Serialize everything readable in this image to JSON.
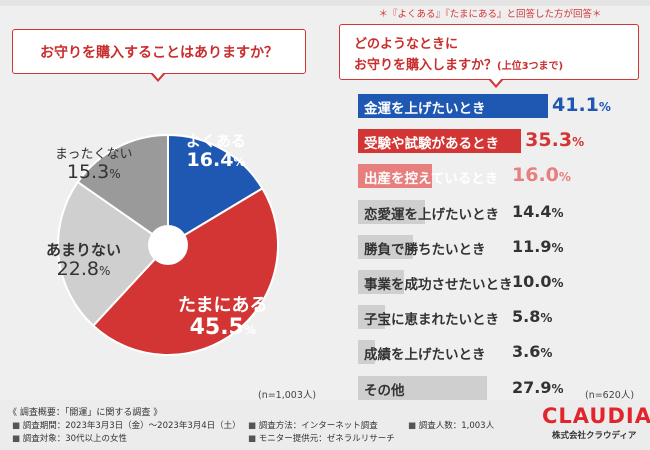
{
  "colors": {
    "blue": "#1f58b3",
    "red": "#d33535",
    "pink": "#e87f7f",
    "gray": "#cfcfcf",
    "gray_light": "#dcdcdc",
    "gray_dark": "#9a9a9a",
    "gray_mid": "#bdbdbd"
  },
  "left_question": "お守りを購入することはありますか？",
  "right_note": "＊『よくある』『たまにある』と回答した方が回答＊",
  "right_question": {
    "line1": "どのようなときに",
    "line2": "お守りを購入しますか？",
    "sub": "(上位3つまで)"
  },
  "left_n": "(n=1,003人)",
  "right_n": "(n=620人)",
  "chart_data": [
    {
      "type": "pie",
      "title": "お守りを購入することはありますか？",
      "slices": [
        {
          "label": "よくある",
          "value": 16.4,
          "color": "#1f58b3"
        },
        {
          "label": "たまにある",
          "value": 45.5,
          "color": "#d33535"
        },
        {
          "label": "あまりない",
          "value": 22.8,
          "color": "#cfcfcf"
        },
        {
          "label": "まったくない",
          "value": 15.3,
          "color": "#9a9a9a"
        }
      ]
    },
    {
      "type": "bar",
      "orientation": "horizontal",
      "title": "どのようなときにお守りを購入しますか？(上位3つまで)",
      "categories": [
        "金運を上げたいとき",
        "受験や試験があるとき",
        "出産を控えているとき",
        "恋愛運を上げたいとき",
        "勝負で勝ちたいとき",
        "事業を成功させたいとき",
        "子宝に恵まれたいとき",
        "成績を上げたいとき",
        "その他"
      ],
      "values": [
        41.1,
        35.3,
        16.0,
        14.4,
        11.9,
        10.0,
        5.8,
        3.6,
        27.9
      ],
      "value_labels": [
        "41.1",
        "35.3",
        "16.0",
        "14.4",
        "11.9",
        "10.0",
        "5.8",
        "3.6",
        "27.9"
      ],
      "unit": "%",
      "bar_colors": [
        "#1f58b3",
        "#d33535",
        "#e87f7f",
        "#cfcfcf",
        "#cfcfcf",
        "#cfcfcf",
        "#cfcfcf",
        "#cfcfcf",
        "#cfcfcf"
      ],
      "xlim": [
        0,
        41.1
      ]
    }
  ],
  "footer": {
    "title": "《 調査概要：「開運」に関する調査 》",
    "period": "調査期間：2023年3月3日（金）～2023年3月4日（土）",
    "target": "調査対象：30代以上の女性",
    "method": "調査方法：インターネット調査",
    "provider": "モニター提供元：ゼネラルリサーチ",
    "count": "調査人数：1,003人",
    "bullet": "■"
  },
  "logo": "CLAUDIA",
  "company": "株式会社クラウディア"
}
